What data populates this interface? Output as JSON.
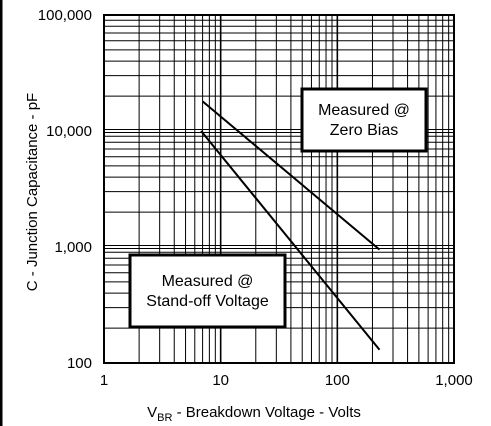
{
  "chart_data": {
    "type": "line",
    "x_scale": "log",
    "y_scale": "log",
    "xlim": [
      1,
      1000
    ],
    "ylim": [
      100,
      100000
    ],
    "grid": true,
    "xlabel_main": "V",
    "xlabel_sub": "BR",
    "xlabel_rest": " - Breakdown Voltage - Volts",
    "ylabel": "C - Junction Capacitance - pF",
    "x_ticks": [
      1,
      10,
      100,
      1000
    ],
    "x_tick_labels": [
      "1",
      "10",
      "100",
      "1,000"
    ],
    "y_ticks": [
      100,
      1000,
      10000,
      100000
    ],
    "y_tick_labels": [
      "100",
      "1,000",
      "10,000",
      "100,000"
    ],
    "series": [
      {
        "points": [
          [
            7.0,
            18000
          ],
          [
            230,
            950
          ]
        ]
      },
      {
        "points": [
          [
            6.8,
            10000
          ],
          [
            230,
            130
          ]
        ]
      }
    ],
    "annotations": [
      {
        "lines": [
          "Measured @",
          "Zero Bias"
        ],
        "position": "upper-right"
      },
      {
        "lines": [
          "Measured @",
          "Stand-off Voltage"
        ],
        "position": "lower-left"
      }
    ],
    "colors": {
      "line": "#000000",
      "grid": "#000000",
      "background": "#ffffff"
    }
  }
}
